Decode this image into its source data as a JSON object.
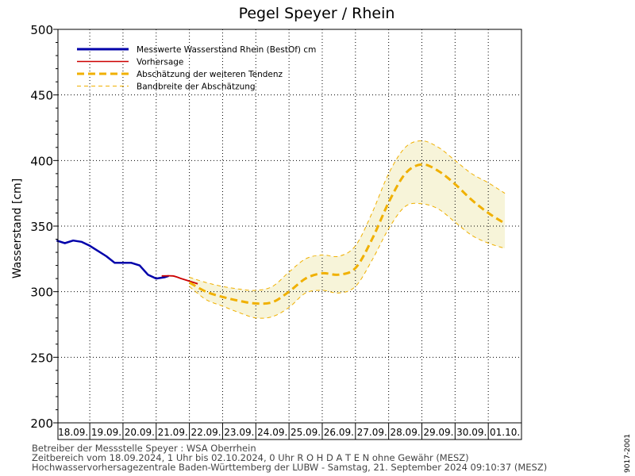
{
  "chart_data": {
    "type": "line",
    "title": "Pegel Speyer / Rhein",
    "ylabel": "Wasserstand [cm]",
    "xlabel": "",
    "ylim": [
      200,
      500
    ],
    "yticks": [
      200,
      250,
      300,
      350,
      400,
      450,
      500
    ],
    "x_range": [
      "2024-09-18T01:00",
      "2024-10-02T00:00"
    ],
    "x_ticklabels": [
      "18.09.",
      "19.09.",
      "20.09.",
      "21.09.",
      "22.09.",
      "23.09.",
      "24.09.",
      "25.09.",
      "26.09.",
      "27.09.",
      "28.09.",
      "29.09.",
      "30.09.",
      "01.10."
    ],
    "grid": true,
    "legend_position": "top-left",
    "series": [
      {
        "name": "Messwerte Wasserstand Rhein (BestOf)  cm",
        "color": "#0000aa",
        "style": "solid-thick",
        "x": [
          "2024-09-18T00:00",
          "2024-09-18T06:00",
          "2024-09-18T12:00",
          "2024-09-18T18:00",
          "2024-09-19T00:00",
          "2024-09-19T06:00",
          "2024-09-19T12:00",
          "2024-09-19T18:00",
          "2024-09-20T00:00",
          "2024-09-20T06:00",
          "2024-09-20T12:00",
          "2024-09-20T18:00",
          "2024-09-21T00:00",
          "2024-09-21T06:00",
          "2024-09-21T09:00"
        ],
        "y": [
          339,
          337,
          339,
          338,
          335,
          331,
          327,
          322,
          322,
          322,
          320,
          313,
          310,
          311,
          312
        ]
      },
      {
        "name": "Vorhersage",
        "color": "#cc0000",
        "style": "solid",
        "x": [
          "2024-09-21T04:00",
          "2024-09-21T12:00",
          "2024-09-21T18:00",
          "2024-09-22T00:00",
          "2024-09-22T06:00"
        ],
        "y": [
          312,
          312,
          310,
          308,
          306
        ]
      },
      {
        "name": "Abschätzung der weiteren Tendenz",
        "color": "#f0b000",
        "style": "dashed-thick",
        "x": [
          "2024-09-22T00:00",
          "2024-09-22T12:00",
          "2024-09-23T00:00",
          "2024-09-23T12:00",
          "2024-09-24T00:00",
          "2024-09-24T12:00",
          "2024-09-25T00:00",
          "2024-09-25T12:00",
          "2024-09-26T00:00",
          "2024-09-26T12:00",
          "2024-09-27T00:00",
          "2024-09-27T12:00",
          "2024-09-28T00:00",
          "2024-09-28T12:00",
          "2024-09-29T00:00",
          "2024-09-29T12:00",
          "2024-09-30T00:00",
          "2024-09-30T12:00",
          "2024-10-01T00:00",
          "2024-10-01T12:00"
        ],
        "y": [
          307,
          300,
          296,
          293,
          291,
          292,
          300,
          310,
          314,
          313,
          318,
          340,
          368,
          390,
          397,
          392,
          382,
          370,
          360,
          352
        ]
      },
      {
        "name": "Bandbreite der Abschätzung",
        "color": "#f0b000",
        "style": "dashed-thin-band",
        "x": [
          "2024-09-22T00:00",
          "2024-09-22T12:00",
          "2024-09-23T00:00",
          "2024-09-23T12:00",
          "2024-09-24T00:00",
          "2024-09-24T12:00",
          "2024-09-25T00:00",
          "2024-09-25T12:00",
          "2024-09-26T00:00",
          "2024-09-26T12:00",
          "2024-09-27T00:00",
          "2024-09-27T12:00",
          "2024-09-28T00:00",
          "2024-09-28T12:00",
          "2024-09-29T00:00",
          "2024-09-29T12:00",
          "2024-09-30T00:00",
          "2024-09-30T12:00",
          "2024-10-01T00:00",
          "2024-10-01T12:00"
        ],
        "upper": [
          311,
          307,
          304,
          302,
          301,
          304,
          315,
          325,
          328,
          327,
          335,
          360,
          390,
          410,
          415,
          410,
          400,
          390,
          383,
          375
        ],
        "lower": [
          304,
          294,
          289,
          284,
          280,
          281,
          288,
          299,
          301,
          299,
          304,
          324,
          348,
          365,
          367,
          363,
          353,
          343,
          337,
          333
        ]
      }
    ]
  },
  "footer": {
    "line1": "Betreiber der Messstelle Speyer : WSA Oberrhein",
    "line2": "Zeitbereich vom 18.09.2024, 1 Uhr bis 02.10.2024, 0 Uhr   R O H D A T E N ohne Gewähr (MESZ)",
    "line3": "Hochwasservorhersagezentrale Baden-Württemberg der LUBW - Samstag, 21. September 2024 09:10:37 (MESZ)"
  },
  "side_label": "9017-2001"
}
